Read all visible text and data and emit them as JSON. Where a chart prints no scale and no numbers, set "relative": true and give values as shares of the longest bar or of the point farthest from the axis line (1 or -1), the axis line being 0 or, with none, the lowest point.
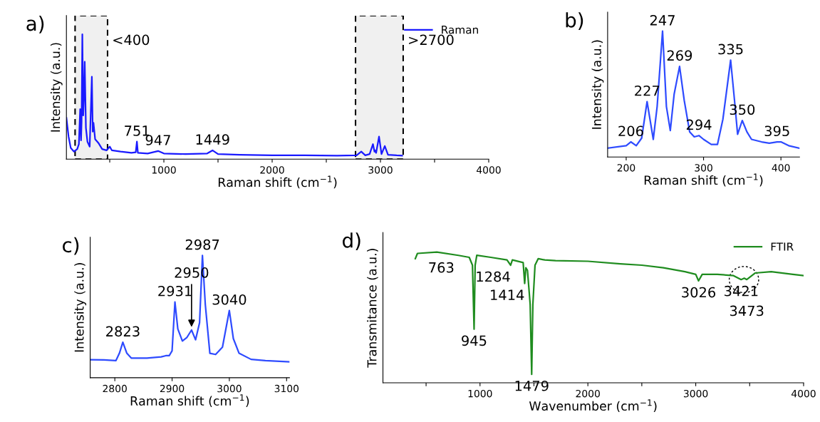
{
  "chart_data": [
    {
      "type": "line",
      "title": "a)",
      "xlabel": "Raman shift (cm$^{−1}$)",
      "ylabel": "Intensity (a.u.)",
      "relative": true,
      "legend": "top right",
      "grid": false,
      "xlim": [
        100,
        4000
      ],
      "xticks": [
        {
          "value": 500,
          "label": null
        },
        1000,
        {
          "value": 1500,
          "label": null
        },
        2000,
        {
          "value": 2500,
          "label": null
        },
        3000,
        {
          "value": 3500,
          "label": null
        },
        4000
      ],
      "x": [
        100,
        120,
        140,
        170,
        200,
        215,
        227,
        235,
        240,
        247,
        255,
        262,
        269,
        280,
        294,
        315,
        335,
        343,
        350,
        365,
        395,
        430,
        470,
        500,
        520,
        600,
        700,
        740,
        751,
        760,
        850,
        947,
        1000,
        1200,
        1400,
        1449,
        1500,
        1700,
        2000,
        2300,
        2600,
        2780,
        2823,
        2860,
        2900,
        2931,
        2945,
        2950,
        2960,
        2987,
        3010,
        3040,
        3070,
        3150,
        3200
      ],
      "series": [
        {
          "name": "Raman",
          "color": "#1a1aff",
          "values": [
            0.33,
            0.18,
            0.09,
            0.06,
            0.08,
            0.12,
            0.4,
            0.15,
            0.3,
            1.0,
            0.35,
            0.5,
            0.78,
            0.25,
            0.14,
            0.1,
            0.66,
            0.22,
            0.29,
            0.16,
            0.13,
            0.08,
            0.07,
            0.1,
            0.07,
            0.06,
            0.05,
            0.055,
            0.14,
            0.05,
            0.045,
            0.065,
            0.045,
            0.04,
            0.045,
            0.07,
            0.04,
            0.035,
            0.03,
            0.03,
            0.028,
            0.03,
            0.06,
            0.03,
            0.04,
            0.12,
            0.06,
            0.07,
            0.05,
            0.18,
            0.04,
            0.105,
            0.035,
            0.03,
            0.028
          ]
        }
      ],
      "annotations": [
        {
          "text": "751",
          "x": 751,
          "y": 0.14
        },
        {
          "text": "947",
          "x": 947,
          "y": 0.065
        },
        {
          "text": "1449",
          "x": 1449,
          "y": 0.07
        }
      ],
      "bands": [
        {
          "axis": "x",
          "from": 180,
          "to": 480,
          "label": "<400",
          "color": "#000000"
        },
        {
          "axis": "x",
          "from": 2770,
          "to": 3210,
          "label": ">2700",
          "color": "#000000"
        }
      ]
    },
    {
      "type": "line",
      "title": "b)",
      "xlabel": "Raman shift (cm$^{−1}$)",
      "ylabel": "Intensity (a.u.)",
      "relative": true,
      "grid": false,
      "xlim": [
        176,
        424
      ],
      "xticks": [
        200,
        300,
        400
      ],
      "x": [
        176,
        200,
        206,
        213,
        220,
        227,
        235,
        240,
        247,
        252,
        257,
        262,
        269,
        275,
        282,
        288,
        294,
        300,
        310,
        318,
        325,
        335,
        340,
        344,
        350,
        356,
        362,
        375,
        385,
        395,
        400,
        410,
        424
      ],
      "series": [
        {
          "color": "#2e4bff",
          "values": [
            0.07,
            0.09,
            0.12,
            0.09,
            0.15,
            0.44,
            0.14,
            0.4,
            1.0,
            0.4,
            0.21,
            0.5,
            0.72,
            0.45,
            0.2,
            0.16,
            0.17,
            0.14,
            0.1,
            0.1,
            0.3,
            0.77,
            0.45,
            0.18,
            0.29,
            0.2,
            0.14,
            0.12,
            0.11,
            0.12,
            0.12,
            0.09,
            0.07
          ]
        }
      ],
      "annotations": [
        {
          "text": "206",
          "x": 206,
          "y": 0.12
        },
        {
          "text": "227",
          "x": 227,
          "y": 0.44
        },
        {
          "text": "247",
          "x": 247,
          "y": 1.0
        },
        {
          "text": "269",
          "x": 269,
          "y": 0.72
        },
        {
          "text": "294",
          "x": 294,
          "y": 0.17
        },
        {
          "text": "335",
          "x": 335,
          "y": 0.77
        },
        {
          "text": "350",
          "x": 350,
          "y": 0.29
        },
        {
          "text": "395",
          "x": 395,
          "y": 0.12
        }
      ]
    },
    {
      "type": "line",
      "title": "c)",
      "xlabel": "Raman shift (cm$^{−1}$)",
      "ylabel": "Intensity (a.u.)",
      "relative": true,
      "grid": false,
      "xlim": [
        2757,
        3105
      ],
      "xticks": [
        2800,
        2900,
        3000,
        3100
      ],
      "x": [
        2757,
        2781,
        2802,
        2808,
        2814,
        2821,
        2829,
        2856,
        2881,
        2889,
        2895,
        2900,
        2905,
        2910,
        2918,
        2926,
        2934,
        2941,
        2948,
        2953,
        2958,
        2966,
        2976,
        2988,
        3000,
        3007,
        3017,
        3038,
        3063,
        3105
      ],
      "series": [
        {
          "color": "#2e4bff",
          "values": [
            0.147,
            0.145,
            0.14,
            0.2,
            0.29,
            0.2,
            0.16,
            0.16,
            0.17,
            0.18,
            0.18,
            0.22,
            0.62,
            0.4,
            0.3,
            0.33,
            0.39,
            0.31,
            0.45,
            1.0,
            0.6,
            0.2,
            0.19,
            0.25,
            0.55,
            0.32,
            0.2,
            0.15,
            0.14,
            0.13
          ]
        }
      ],
      "annotations": [
        {
          "text": "2823",
          "x": 2814,
          "y": 0.29
        },
        {
          "text": "2931",
          "x": 2905,
          "y": 0.62
        },
        {
          "text": "2950",
          "x": 2934,
          "y": 0.39
        },
        {
          "text": "2987",
          "x": 2953,
          "y": 1.0
        },
        {
          "text": "3040",
          "x": 3000,
          "y": 0.55
        }
      ]
    },
    {
      "type": "line",
      "title": "d)",
      "xlabel": "Wavenumber (cm$^{−1}$)",
      "ylabel": "Transmitance (a.u.)",
      "relative": true,
      "legend": "top right",
      "grid": false,
      "xlim": [
        100,
        4000
      ],
      "xticks": [
        {
          "value": 500,
          "label": null
        },
        1000,
        {
          "value": 1500,
          "label": null
        },
        2000,
        {
          "value": 2500,
          "label": null
        },
        3000,
        {
          "value": 3500,
          "label": null
        },
        4000
      ],
      "x": [
        400,
        420,
        600,
        800,
        900,
        930,
        945,
        955,
        970,
        1100,
        1250,
        1284,
        1300,
        1400,
        1414,
        1425,
        1440,
        1465,
        1479,
        1490,
        1510,
        1540,
        1600,
        1700,
        2000,
        2300,
        2500,
        2700,
        2900,
        3000,
        3026,
        3060,
        3200,
        3350,
        3421,
        3450,
        3473,
        3550,
        3700,
        3900,
        4000
      ],
      "series": [
        {
          "name": "FTIR",
          "color": "#1f8c1f",
          "values": [
            0.95,
            0.99,
            1.0,
            0.975,
            0.96,
            0.9,
            0.41,
            0.9,
            0.976,
            0.96,
            0.94,
            0.9,
            0.94,
            0.92,
            0.76,
            0.88,
            0.86,
            0.6,
            0.064,
            0.6,
            0.9,
            0.95,
            0.94,
            0.935,
            0.93,
            0.91,
            0.9,
            0.88,
            0.85,
            0.83,
            0.78,
            0.83,
            0.83,
            0.82,
            0.79,
            0.8,
            0.79,
            0.84,
            0.85,
            0.83,
            0.82
          ]
        }
      ],
      "annotations": [
        {
          "text": "763",
          "x": 763,
          "y": 0.97
        },
        {
          "text": "945",
          "x": 945,
          "y": 0.41
        },
        {
          "text": "1284",
          "x": 1284,
          "y": 0.9
        },
        {
          "text": "1414",
          "x": 1414,
          "y": 0.76
        },
        {
          "text": "1479",
          "x": 1479,
          "y": 0.064
        },
        {
          "text": "3026",
          "x": 3026,
          "y": 0.78
        },
        {
          "text": "3421",
          "x": 3421,
          "y": 0.79
        },
        {
          "text": "3473",
          "x": 3473,
          "y": 0.79
        }
      ]
    }
  ]
}
